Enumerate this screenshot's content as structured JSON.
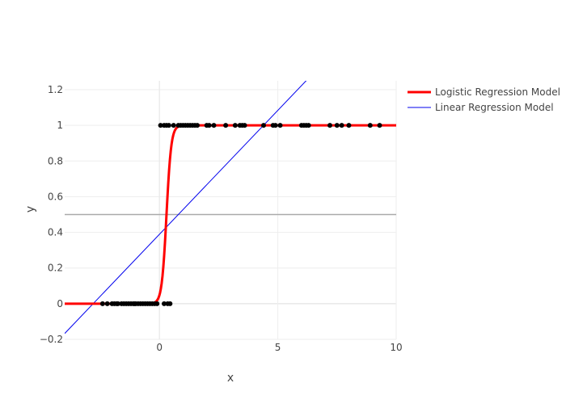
{
  "chart_data": {
    "type": "scatter",
    "title": "",
    "xlabel": "x",
    "ylabel": "y",
    "xlim": [
      -4.0,
      10
    ],
    "ylim": [
      -0.2,
      1.25
    ],
    "x_ticks": [
      {
        "value": 0,
        "label": "0"
      },
      {
        "value": 5,
        "label": "5"
      },
      {
        "value": 10,
        "label": "10"
      }
    ],
    "y_ticks": [
      {
        "value": -0.2,
        "label": "−0.2"
      },
      {
        "value": 0,
        "label": "0"
      },
      {
        "value": 0.2,
        "label": "0.2"
      },
      {
        "value": 0.4,
        "label": "0.4"
      },
      {
        "value": 0.6,
        "label": "0.6"
      },
      {
        "value": 0.8,
        "label": "0.8"
      },
      {
        "value": 1,
        "label": "1"
      },
      {
        "value": 1.2,
        "label": "1.2"
      }
    ],
    "grid": true,
    "legend_position": "top-right",
    "reference_line": {
      "y": 0.5,
      "color": "#aaaaaa"
    },
    "scatter_points": {
      "color": "#000000",
      "zeros_x": [
        -2.4,
        -2.2,
        -2.0,
        -1.9,
        -1.8,
        -1.75,
        -1.6,
        -1.5,
        -1.4,
        -1.3,
        -1.2,
        -1.1,
        -1.05,
        -1.0,
        -0.9,
        -0.8,
        -0.7,
        -0.6,
        -0.5,
        -0.4,
        -0.3,
        -0.2,
        -0.1,
        0.2,
        0.35,
        0.45
      ],
      "ones_x": [
        0.05,
        0.2,
        0.3,
        0.4,
        0.6,
        0.8,
        0.9,
        1.0,
        1.1,
        1.2,
        1.3,
        1.4,
        1.5,
        1.6,
        2.0,
        2.1,
        2.3,
        2.8,
        3.2,
        3.4,
        3.5,
        3.6,
        4.4,
        4.8,
        4.9,
        5.1,
        6.0,
        6.1,
        6.2,
        6.3,
        7.2,
        7.5,
        7.7,
        8.0,
        8.9,
        9.3
      ]
    },
    "series": [
      {
        "name": "Logistic Regression Model",
        "type": "line",
        "color": "#ff0000",
        "logistic": {
          "k": 10,
          "x0": 0.3
        }
      },
      {
        "name": "Linear Regression Model",
        "type": "line",
        "color": "#0000ee",
        "linear": {
          "slope": 0.139,
          "intercept": 0.389
        }
      }
    ]
  }
}
